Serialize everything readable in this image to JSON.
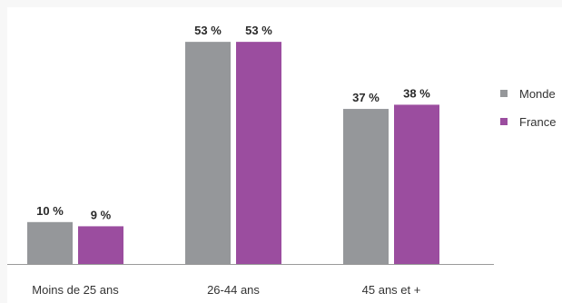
{
  "chart_data": {
    "type": "bar",
    "categories": [
      "Moins de 25 ans",
      "26-44 ans",
      "45 ans et +"
    ],
    "series": [
      {
        "name": "Monde",
        "values": [
          10,
          53,
          37
        ],
        "labels": [
          "10 %",
          "53 %",
          "37 %"
        ],
        "color": "#95979a"
      },
      {
        "name": "France",
        "values": [
          9,
          53,
          38
        ],
        "labels": [
          "9 %",
          "53 %",
          "38 %"
        ],
        "color": "#9b4d9f"
      }
    ],
    "ylim": [
      0,
      60
    ],
    "grid": false,
    "legend": "right",
    "baseline_color": "#9a9a9a"
  }
}
